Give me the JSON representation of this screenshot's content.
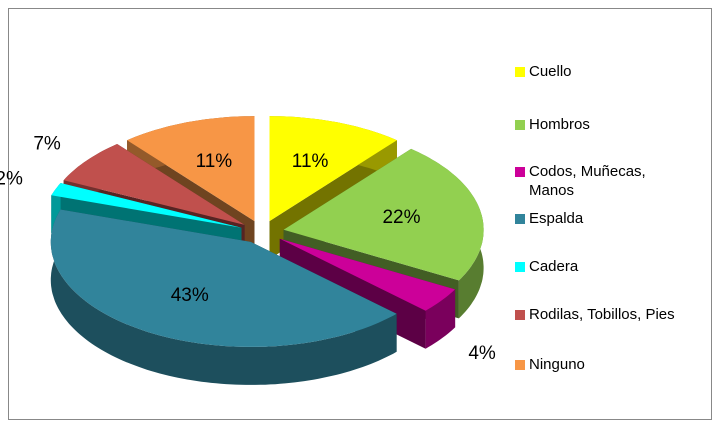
{
  "chart_data": {
    "type": "pie3d",
    "categories": [
      "Cuello",
      "Hombros",
      "Codos, Muñecas, Manos",
      "Espalda",
      "Cadera",
      "Rodilas, Tobillos, Pies",
      "Ninguno"
    ],
    "values": [
      11,
      22,
      4,
      43,
      2,
      7,
      11
    ],
    "value_labels": [
      "11%",
      "22%",
      "4%",
      "43%",
      "2%",
      "7%",
      "11%"
    ],
    "colors": [
      "#ffff00",
      "#92d050",
      "#cc0099",
      "#31849b",
      "#00ffff",
      "#c0504d",
      "#f79646"
    ],
    "legend": "right"
  }
}
